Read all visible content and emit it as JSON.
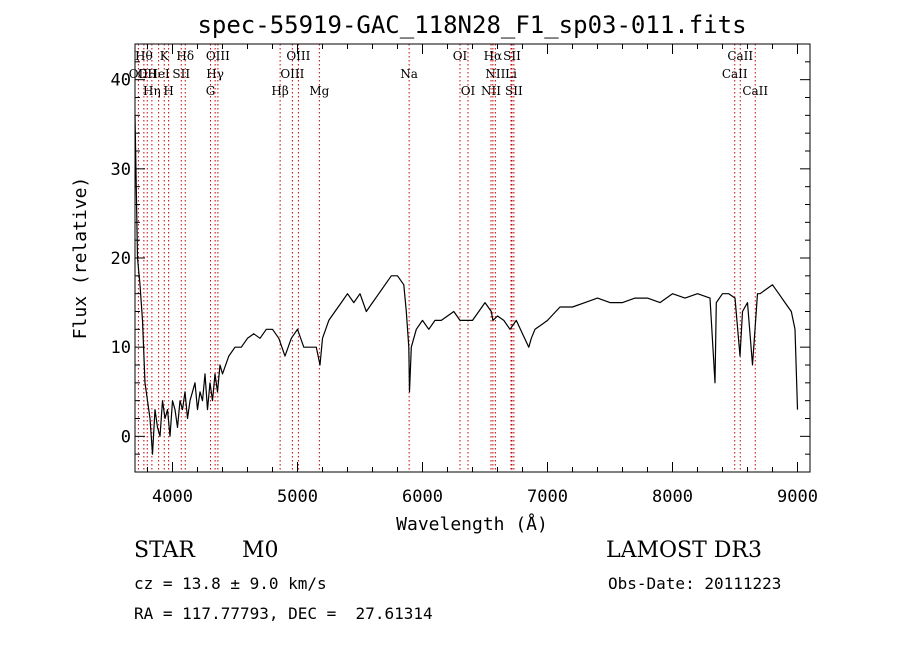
{
  "info": {
    "object_class": "STAR",
    "subclass": "M0",
    "survey": "LAMOST DR3",
    "redshift_line": "cz = 13.8 ± 9.0 km/s",
    "obs_date": "Obs-Date: 20111223",
    "coords_line": "RA = 117.77793, DEC =  27.61314"
  },
  "chart_data": {
    "type": "line",
    "title": "spec-55919-GAC_118N28_F1_sp03-011.fits",
    "xlabel": "Wavelength (Å)",
    "ylabel": "Flux (relative)",
    "xlim": [
      3700,
      9100
    ],
    "ylim": [
      -4,
      44
    ],
    "xticks": [
      4000,
      5000,
      6000,
      7000,
      8000,
      9000
    ],
    "yticks": [
      0,
      10,
      20,
      30,
      40
    ],
    "grid": false,
    "line_color": "#000000",
    "marker_color": "#cc0000",
    "series": [
      {
        "x": [
          3700,
          3720,
          3740,
          3760,
          3780,
          3800,
          3820,
          3840,
          3860,
          3880,
          3900,
          3920,
          3940,
          3960,
          3980,
          4000,
          4020,
          4040,
          4060,
          4080,
          4100,
          4120,
          4140,
          4160,
          4180,
          4200,
          4220,
          4240,
          4260,
          4280,
          4300,
          4320,
          4340,
          4360,
          4380,
          4400,
          4450,
          4500,
          4550,
          4600,
          4650,
          4700,
          4750,
          4800,
          4850,
          4900,
          4950,
          5000,
          5050,
          5100,
          5150,
          5180,
          5200,
          5250,
          5300,
          5350,
          5400,
          5450,
          5500,
          5550,
          5600,
          5650,
          5700,
          5750,
          5800,
          5850,
          5870,
          5890,
          5896,
          5910,
          5950,
          6000,
          6050,
          6100,
          6150,
          6200,
          6250,
          6300,
          6350,
          6400,
          6450,
          6500,
          6550,
          6563,
          6600,
          6650,
          6700,
          6750,
          6800,
          6850,
          6870,
          6900,
          6950,
          7000,
          7100,
          7200,
          7300,
          7400,
          7500,
          7600,
          7700,
          7800,
          7900,
          8000,
          8100,
          8200,
          8300,
          8340,
          8350,
          8400,
          8450,
          8500,
          8540,
          8560,
          8600,
          8640,
          8680,
          8700,
          8800,
          8850,
          8900,
          8950,
          8980,
          9000
        ],
        "y": [
          36,
          20,
          17,
          13,
          6,
          4,
          2,
          -2,
          3,
          1,
          0,
          4,
          2,
          3,
          0,
          4,
          3,
          1,
          4,
          3,
          5,
          2,
          4,
          5,
          6,
          3,
          5,
          4,
          7,
          3,
          6,
          4,
          7,
          5,
          8,
          7,
          9,
          10,
          10,
          11,
          11.5,
          11,
          12,
          12,
          11,
          9,
          11,
          12,
          10,
          10,
          10,
          8,
          11,
          13,
          14,
          15,
          16,
          15,
          16,
          14,
          15,
          16,
          17,
          18,
          18,
          17,
          14,
          10,
          5,
          10,
          12,
          13,
          12,
          13,
          13,
          13.5,
          14,
          13,
          13,
          13,
          14,
          15,
          14,
          13,
          13.5,
          13,
          12,
          13,
          11.5,
          10,
          11,
          12,
          12.5,
          13,
          14.5,
          14.5,
          15,
          15.5,
          15,
          15,
          15.5,
          15.5,
          15,
          16,
          15.5,
          16,
          15.5,
          6,
          15,
          16,
          16,
          15.5,
          9,
          14,
          15,
          8,
          16,
          16,
          17,
          16,
          15,
          14,
          12,
          3
        ]
      }
    ],
    "line_markers": [
      {
        "wl": 3727,
        "label": "OII",
        "row": 1
      },
      {
        "wl": 3771,
        "label": "Hθ",
        "row": 0
      },
      {
        "wl": 3798,
        "label": "OII",
        "row": 1
      },
      {
        "wl": 3835,
        "label": "Hη",
        "row": 2
      },
      {
        "wl": 3889,
        "label": "HeI",
        "row": 1
      },
      {
        "wl": 3934,
        "label": "K",
        "row": 0
      },
      {
        "wl": 3969,
        "label": "H",
        "row": 2
      },
      {
        "wl": 4070,
        "label": "SII",
        "row": 1
      },
      {
        "wl": 4102,
        "label": "Hδ",
        "row": 0
      },
      {
        "wl": 4304,
        "label": "G",
        "row": 2
      },
      {
        "wl": 4341,
        "label": "Hγ",
        "row": 1
      },
      {
        "wl": 4363,
        "label": "OIII",
        "row": 0
      },
      {
        "wl": 4861,
        "label": "Hβ",
        "row": 2
      },
      {
        "wl": 4959,
        "label": "OIII",
        "row": 1
      },
      {
        "wl": 5007,
        "label": "OIII",
        "row": 0
      },
      {
        "wl": 5175,
        "label": "Mg",
        "row": 2
      },
      {
        "wl": 5893,
        "label": "Na",
        "row": 1
      },
      {
        "wl": 6300,
        "label": "OI",
        "row": 0
      },
      {
        "wl": 6364,
        "label": "OI",
        "row": 2
      },
      {
        "wl": 6548,
        "label": "NII",
        "row": 2
      },
      {
        "wl": 6563,
        "label": "Hα",
        "row": 0
      },
      {
        "wl": 6583,
        "label": "NII",
        "row": 1
      },
      {
        "wl": 6708,
        "label": "Li",
        "row": 1
      },
      {
        "wl": 6716,
        "label": "SII",
        "row": 0
      },
      {
        "wl": 6731,
        "label": "SII",
        "row": 2
      },
      {
        "wl": 8498,
        "label": "CaII",
        "row": 1
      },
      {
        "wl": 8542,
        "label": "CaII",
        "row": 0
      },
      {
        "wl": 8662,
        "label": "CaII",
        "row": 2
      }
    ]
  }
}
